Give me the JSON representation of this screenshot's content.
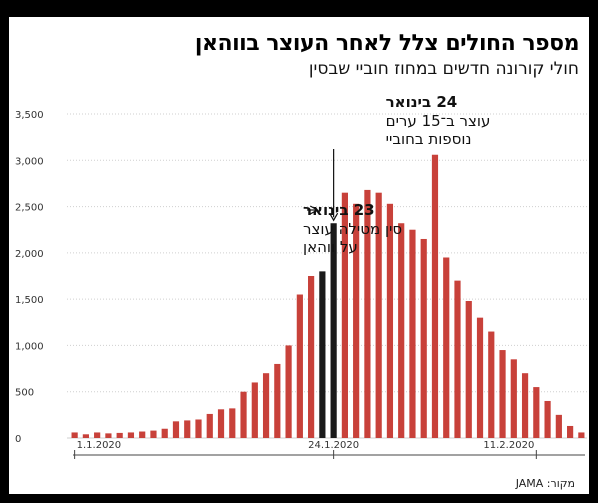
{
  "header": {
    "title": "מספר החולים צלל לאחר העוצר בווהאן",
    "subtitle": "חולי קורונה חדשים במחוז חוביי שבסין"
  },
  "footer": {
    "source": "מקור: JAMA"
  },
  "colors": {
    "bar": "#c8413a",
    "highlight": "#1a1a1a",
    "grid": "#cfcfcf"
  },
  "chart_data": {
    "type": "bar",
    "ylim": [
      0,
      3500
    ],
    "yticks": [
      0,
      500,
      1000,
      1500,
      2000,
      2500,
      3000,
      3500
    ],
    "ytick_labels": [
      "0",
      "500",
      "1,000",
      "1,500",
      "2,000",
      "2,500",
      "3,000",
      "3,500"
    ],
    "xtick_labels": [
      {
        "index": 0,
        "label": "1.1.2020"
      },
      {
        "index": 23,
        "label": "24.1.2020"
      },
      {
        "index": 41,
        "label": "11.2.2020"
      }
    ],
    "values": [
      60,
      40,
      60,
      50,
      55,
      60,
      70,
      80,
      100,
      180,
      190,
      200,
      260,
      310,
      320,
      500,
      600,
      700,
      800,
      1000,
      1550,
      1750,
      1800,
      2320,
      2650,
      2530,
      2680,
      2650,
      2530,
      2320,
      2250,
      2150,
      3060,
      1950,
      1700,
      1480,
      1300,
      1150,
      950,
      850,
      700,
      550,
      400,
      250,
      130,
      60
    ],
    "highlight_indices": [
      22,
      23
    ],
    "annotations": [
      {
        "index": 23,
        "head": "24 בינואר",
        "lines": [
          "עוצר ב־15 ערים",
          "נוספות בחוביי"
        ]
      },
      {
        "index": 22,
        "head": "23 בינואר",
        "lines": [
          "סין מטילה עוצר",
          "על ווהאן"
        ]
      }
    ]
  }
}
